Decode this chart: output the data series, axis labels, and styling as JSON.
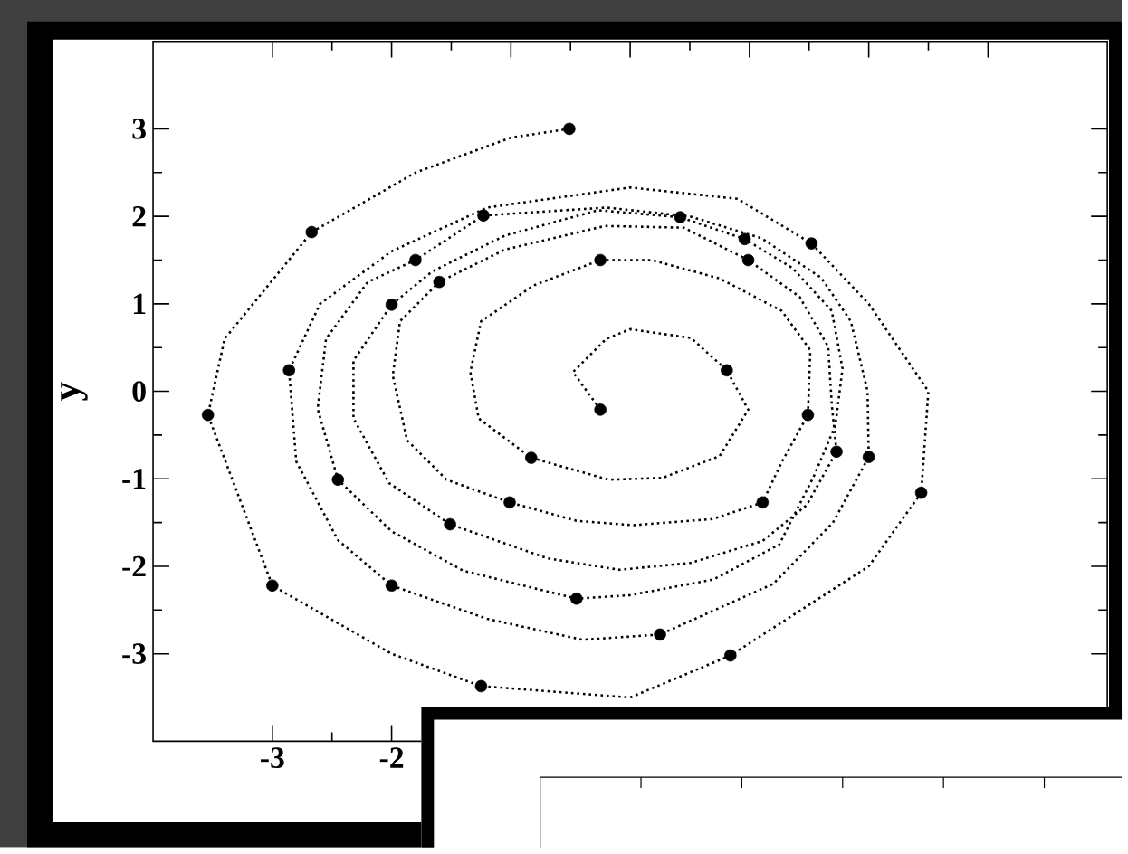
{
  "chart_data": {
    "type": "line",
    "ylabel": "y",
    "xlim": [
      -4,
      4
    ],
    "ylim": [
      -4,
      4
    ],
    "xticks": [
      {
        "value": -3,
        "label": "-3"
      },
      {
        "value": -2,
        "label": "-2"
      },
      {
        "value": -1,
        "label": null
      },
      {
        "value": 0,
        "label": null
      },
      {
        "value": 1,
        "label": null
      },
      {
        "value": 2,
        "label": null
      },
      {
        "value": 3,
        "label": null
      }
    ],
    "yticks": [
      {
        "value": -3,
        "label": "-3"
      },
      {
        "value": -2,
        "label": "-2"
      },
      {
        "value": -1,
        "label": "-1"
      },
      {
        "value": 0,
        "label": "0"
      },
      {
        "value": 1,
        "label": "1"
      },
      {
        "value": 2,
        "label": "2"
      },
      {
        "value": 3,
        "label": "3"
      }
    ],
    "grid": false,
    "legend": false,
    "series": [
      {
        "type": "line",
        "line_style": "dotted",
        "marker": "none",
        "color": "#000000",
        "x": [
          -0.25,
          -0.48,
          -0.2,
          0,
          0.51,
          0.81,
          0.99,
          0.75,
          0.27,
          -0.18,
          -0.83,
          -1.27,
          -1.34,
          -1.25,
          -0.81,
          -0.25,
          0.18,
          0.75,
          1.27,
          1.51,
          1.49,
          1.27,
          1.11,
          0.69,
          0.03,
          -0.45,
          -1.01,
          -1.54,
          -1.87,
          -1.99,
          -1.93,
          -1.6,
          -1.05,
          -0.21,
          0.45,
          0.99,
          1.42,
          1.66,
          1.69,
          1.73,
          1.48,
          1.11,
          0.51,
          -0.09,
          -0.69,
          -1.51,
          -2.02,
          -2.32,
          -2.32,
          -2.0,
          -1.66,
          -1.05,
          -0.27,
          0.42,
          0.96,
          1.36,
          1.69,
          1.78,
          1.72,
          1.54,
          1.25,
          0.7,
          0.0,
          -0.45,
          -1.4,
          -2.0,
          -2.45,
          -2.62,
          -2.55,
          -2.2,
          -1.8,
          -1.23,
          -0.2,
          0.5,
          1.1,
          1.6,
          1.85,
          1.99,
          2.0,
          1.7,
          1.2,
          0.25,
          -0.4,
          -1.2,
          -2.0,
          -2.45,
          -2.8,
          -2.86,
          -2.6,
          -2.0,
          -1.2,
          0,
          0.9,
          1.52,
          2.0,
          2.5,
          2.44,
          2.0,
          0.84,
          0,
          -1.25,
          -2.0,
          -3.0,
          -3.54,
          -3.4,
          -2.67,
          -1.8,
          -1.0,
          -0.51
        ],
        "values": [
          -0.21,
          0.22,
          0.6,
          0.71,
          0.61,
          0.24,
          -0.21,
          -0.74,
          -0.99,
          -1.01,
          -0.76,
          -0.31,
          0.22,
          0.8,
          1.21,
          1.5,
          1.5,
          1.29,
          0.92,
          0.47,
          -0.27,
          -0.81,
          -1.27,
          -1.46,
          -1.53,
          -1.48,
          -1.27,
          -1.01,
          -0.56,
          0.18,
          0.8,
          1.25,
          1.62,
          1.89,
          1.87,
          1.5,
          1.08,
          0.51,
          -0.15,
          -0.69,
          -1.3,
          -1.71,
          -1.96,
          -2.04,
          -1.91,
          -1.52,
          -1.05,
          -0.31,
          0.35,
          0.99,
          1.37,
          1.78,
          2.07,
          1.99,
          1.74,
          1.41,
          0.92,
          0.26,
          -0.39,
          -0.97,
          -1.75,
          -2.15,
          -2.33,
          -2.37,
          -2.05,
          -1.6,
          -1.01,
          -0.2,
          0.6,
          1.25,
          1.5,
          2.01,
          2.1,
          2.0,
          1.75,
          1.3,
          0.8,
          0.0,
          -0.75,
          -1.5,
          -2.2,
          -2.78,
          -2.84,
          -2.6,
          -2.22,
          -1.7,
          -0.8,
          0.24,
          1.0,
          1.6,
          2.1,
          2.33,
          2.2,
          1.69,
          1.0,
          0.0,
          -1.16,
          -2.0,
          -3.02,
          -3.5,
          -3.37,
          -3.0,
          -2.22,
          -0.27,
          0.6,
          1.82,
          2.5,
          2.9,
          3.0
        ]
      },
      {
        "type": "scatter",
        "marker": "circle",
        "color": "#000000",
        "x": [
          -0.51,
          -2.67,
          -1.23,
          0.42,
          0.96,
          1.52,
          -1.8,
          -1.6,
          -2.0,
          -0.25,
          0.99,
          -2.86,
          -3.54,
          0.81,
          -0.25,
          1.49,
          -0.83,
          1.73,
          2.0,
          2.44,
          -2.45,
          -1.01,
          1.11,
          -1.51,
          -3.0,
          -2.0,
          -0.45,
          0.25,
          0.84,
          -1.25
        ],
        "values": [
          3.0,
          1.82,
          2.01,
          1.99,
          1.74,
          1.69,
          1.5,
          1.25,
          0.99,
          1.5,
          1.5,
          0.24,
          -0.27,
          0.24,
          -0.21,
          -0.27,
          -0.76,
          -0.69,
          -0.75,
          -1.16,
          -1.01,
          -1.27,
          -1.27,
          -1.52,
          -2.22,
          -2.22,
          -2.37,
          -2.78,
          -3.02,
          -3.37
        ]
      }
    ]
  }
}
